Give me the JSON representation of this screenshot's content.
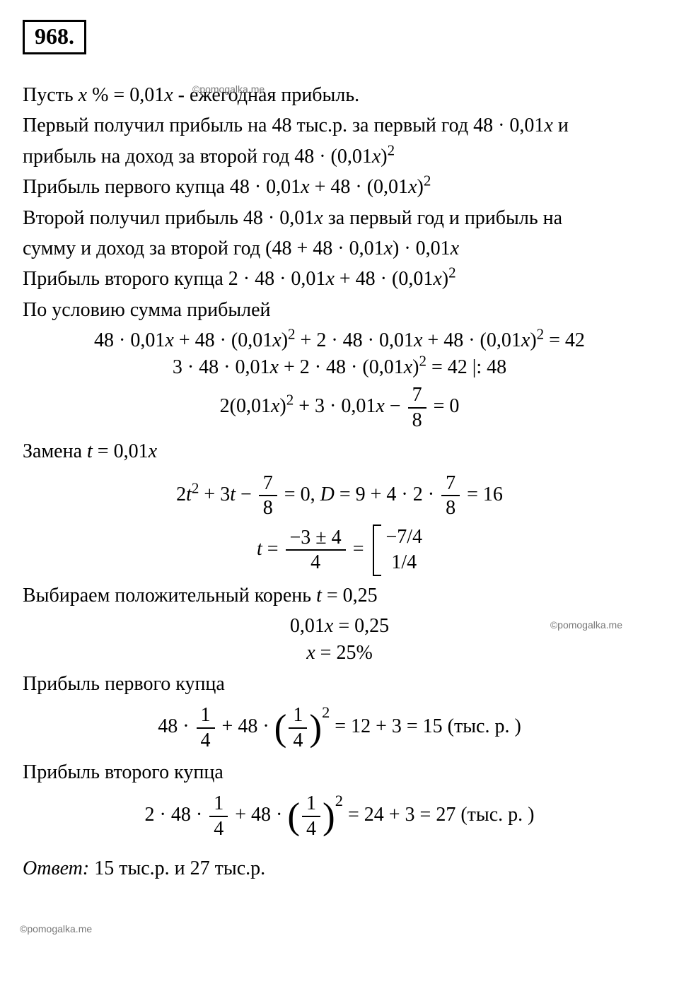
{
  "problem_number": "968.",
  "watermark": "©pomogalka.me",
  "text": {
    "l1_a": "Пусть ",
    "l1_b": " % = 0,01",
    "l1_c": " - ежегодная прибыль.",
    "l2": "Первый получил прибыль на 48 тыс.р. за первый год 48 · 0,01",
    "l2b": " и",
    "l3": "прибыль на доход за второй год 48 · (0,01",
    "l4": "Прибыль первого купца 48 · 0,01",
    "l4b": " + 48 · (0,01",
    "l5": "Второй получил прибыль 48 · 0,01",
    "l5b": " за первый год и прибыль на",
    "l6": "сумму и доход за второй год (48 + 48 · 0,01",
    "l6b": ") · 0,01",
    "l7": "Прибыль второго купца 2 · 48 · 0,01",
    "l7b": " + 48 · (0,01",
    "l8": "По условию сумма прибылей",
    "eq1_a": "48 · 0,01",
    "eq1_b": " + 48 · (0,01",
    "eq1_c": " + 2 · 48 · 0,01",
    "eq1_d": " + 48 · (0,01",
    "eq1_e": " = 42",
    "eq2_a": "3 · 48 · 0,01",
    "eq2_b": " + 2 · 48 · (0,01",
    "eq2_c": " = 42   |: 48",
    "eq3_a": "2(0,01",
    "eq3_b": " + 3 · 0,01",
    "eq3_c": " − ",
    "eq3_d": " = 0",
    "l9": "Замена ",
    "l9b": " = 0,01",
    "eq4_a": "2",
    "eq4_b": " + 3",
    "eq4_c": " − ",
    "eq4_d": " = 0,       ",
    "eq4_e": " = 9 + 4 · 2 · ",
    "eq4_f": " = 16",
    "eq5_a": " = ",
    "eq5_num": "−3 ± 4",
    "eq5_den": "4",
    "eq5_b": " = ",
    "br_top": "−7/4",
    "br_bot": " 1/4",
    "l10": "Выбираем положительный корень ",
    "l10b": " = 0,25",
    "eq6": "0,01",
    "eq6b": " = 0,25",
    "eq7": " = 25%",
    "l11": "Прибыль первого купца",
    "eq8_a": "48 · ",
    "eq8_b": " + 48 · ",
    "eq8_c": " = 12 + 3 = 15 (тыс. р. )",
    "l12": "Прибыль второго купца",
    "eq9_a": "2 · 48 · ",
    "eq9_b": " + 48 · ",
    "eq9_c": " = 24 + 3 = 27 (тыс. р. )",
    "answer_label": "Ответ: ",
    "answer_val": " 15 тыс.р. и 27 тыс.р."
  },
  "frac": {
    "seven": "7",
    "eight": "8",
    "one": "1",
    "four": "4"
  },
  "vars": {
    "x": "x",
    "t": "t",
    "D": "D"
  },
  "style": {
    "background_color": "#ffffff",
    "text_color": "#000000",
    "watermark_color": "#777777",
    "body_fontsize": 28,
    "number_fontsize": 32,
    "font_family": "Cambria Math, Times New Roman, serif",
    "border_width": 3
  }
}
